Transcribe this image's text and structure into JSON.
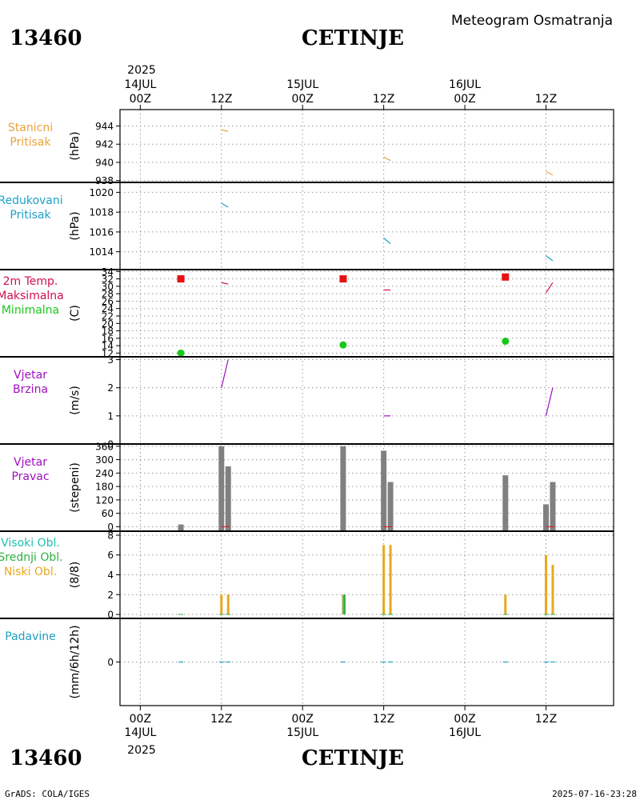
{
  "header": {
    "station_id": "13460",
    "station_name": "CETINJE",
    "subtitle": "Meteogram Osmatranja"
  },
  "footer": {
    "station_id": "13460",
    "station_name": "CETINJE",
    "credit": "GrADS: COLA/IGES",
    "timestamp": "2025-07-16-23:28"
  },
  "time_axis": {
    "year": "2025",
    "ticks": [
      {
        "hour": 0,
        "label": "00Z",
        "date": "14JUL"
      },
      {
        "hour": 12,
        "label": "12Z",
        "date": ""
      },
      {
        "hour": 24,
        "label": "00Z",
        "date": "15JUL"
      },
      {
        "hour": 36,
        "label": "12Z",
        "date": ""
      },
      {
        "hour": 48,
        "label": "00Z",
        "date": "16JUL"
      },
      {
        "hour": 60,
        "label": "12Z",
        "date": ""
      }
    ],
    "range": [
      -3,
      70
    ]
  },
  "colors": {
    "station_pressure": "#e8a23c",
    "reduced_pressure": "#1ea0c8",
    "temp_label": "#d0104a",
    "tmax": "#e81010",
    "tmin": "#18c818",
    "wind": "#a010c0",
    "wind_dir": "#808080",
    "high_cloud": "#20c0b0",
    "mid_cloud": "#30b040",
    "low_cloud": "#e8a820",
    "precip": "#20a0c0"
  },
  "chart_data": [
    {
      "type": "line",
      "id": "station_pressure",
      "labels": [
        "Stanicni",
        "Pritisak"
      ],
      "ylabel": "(hPa)",
      "yticks": [
        938,
        940,
        942,
        944
      ],
      "ylim": [
        937.8,
        945.8
      ],
      "series": [
        {
          "name": "Stanicni Pritisak",
          "segments": [
            [
              [
                12,
                943.6
              ],
              [
                13,
                943.4
              ]
            ],
            [
              [
                36,
                940.6
              ],
              [
                37,
                940.2
              ]
            ],
            [
              [
                60,
                939.0
              ],
              [
                61,
                938.6
              ]
            ]
          ]
        }
      ]
    },
    {
      "type": "line",
      "id": "reduced_pressure",
      "labels": [
        "Redukovani",
        "Pritisak"
      ],
      "ylabel": "(hPa)",
      "yticks": [
        1014,
        1016,
        1018,
        1020
      ],
      "ylim": [
        1012.2,
        1021.0
      ],
      "series": [
        {
          "name": "Redukovani Pritisak",
          "segments": [
            [
              [
                12,
                1018.9
              ],
              [
                13,
                1018.5
              ]
            ],
            [
              [
                36,
                1015.4
              ],
              [
                37,
                1014.8
              ]
            ],
            [
              [
                60,
                1013.6
              ],
              [
                61,
                1013.1
              ]
            ]
          ]
        }
      ]
    },
    {
      "type": "scatter",
      "id": "temperature",
      "labels": [
        "2m Temp.",
        "Maksimalna",
        "Minimalna"
      ],
      "ylabel": "(C)",
      "yticks": [
        12,
        14,
        16,
        18,
        20,
        22,
        24,
        26,
        28,
        30,
        32,
        34
      ],
      "ylim": [
        11,
        34.5
      ],
      "tmax": [
        {
          "x": 6,
          "y": 32.0
        },
        {
          "x": 30,
          "y": 32.0
        },
        {
          "x": 54,
          "y": 32.5
        }
      ],
      "tmin": [
        {
          "x": 6,
          "y": 12.0
        },
        {
          "x": 30,
          "y": 14.2
        },
        {
          "x": 54,
          "y": 15.2
        }
      ],
      "temp_segments": [
        [
          [
            12,
            31.0
          ],
          [
            13,
            30.6
          ]
        ],
        [
          [
            36,
            29.0
          ],
          [
            37,
            29.0
          ]
        ],
        [
          [
            60,
            28.2
          ],
          [
            61,
            31.0
          ]
        ]
      ]
    },
    {
      "type": "line",
      "id": "wind_speed",
      "labels": [
        "Vjetar",
        "Brzina"
      ],
      "ylabel": "(m/s)",
      "yticks": [
        0,
        1,
        2,
        3
      ],
      "ylim": [
        0,
        3.1
      ],
      "segments": [
        [
          [
            12,
            2.0
          ],
          [
            13,
            3.0
          ]
        ],
        [
          [
            36,
            1.0
          ],
          [
            37,
            1.0
          ]
        ],
        [
          [
            60,
            1.0
          ],
          [
            61,
            2.0
          ]
        ]
      ]
    },
    {
      "type": "bar",
      "id": "wind_direction",
      "labels": [
        "Vjetar",
        "Pravac"
      ],
      "ylabel": "(stepeni)",
      "yticks": [
        0,
        60,
        120,
        180,
        240,
        300,
        360
      ],
      "ylim": [
        -20,
        370
      ],
      "bars": [
        {
          "x": 6,
          "value": 10
        },
        {
          "x": 12,
          "value": 360
        },
        {
          "x": 13,
          "value": 270
        },
        {
          "x": 30,
          "value": 360
        },
        {
          "x": 36,
          "value": 340
        },
        {
          "x": 37,
          "value": 200
        },
        {
          "x": 54,
          "value": 230
        },
        {
          "x": 60,
          "value": 100
        },
        {
          "x": 61,
          "value": 200
        }
      ]
    },
    {
      "type": "bar",
      "id": "cloud_cover",
      "labels": [
        "Visoki Obl.",
        "Srednji Obl.",
        "Niski Obl."
      ],
      "ylabel": "(8/8)",
      "yticks": [
        0,
        2,
        4,
        6,
        8
      ],
      "ylim": [
        -0.4,
        8.4
      ],
      "series": [
        {
          "name": "Visoki Obl.",
          "values": [
            {
              "x": 30,
              "value": 2
            }
          ]
        },
        {
          "name": "Srednji Obl.",
          "values": [
            {
              "x": 30,
              "value": 2
            }
          ]
        },
        {
          "name": "Niski Obl.",
          "values": [
            {
              "x": 12,
              "value": 2
            },
            {
              "x": 13,
              "value": 2
            },
            {
              "x": 30,
              "value": 2
            },
            {
              "x": 36,
              "value": 7
            },
            {
              "x": 37,
              "value": 7
            },
            {
              "x": 54,
              "value": 2
            },
            {
              "x": 60,
              "value": 6
            },
            {
              "x": 61,
              "value": 5
            }
          ]
        }
      ]
    },
    {
      "type": "bar",
      "id": "precipitation",
      "labels": [
        "Padavine"
      ],
      "ylabel": "(mm/6h/12h)",
      "yticks": [
        0
      ],
      "ylim": [
        -5,
        5
      ],
      "values": [
        {
          "x": 6,
          "value": 0
        },
        {
          "x": 12,
          "value": 0
        },
        {
          "x": 13,
          "value": 0
        },
        {
          "x": 30,
          "value": 0
        },
        {
          "x": 36,
          "value": 0
        },
        {
          "x": 37,
          "value": 0
        },
        {
          "x": 54,
          "value": 0
        },
        {
          "x": 60,
          "value": 0
        },
        {
          "x": 61,
          "value": 0
        }
      ]
    }
  ]
}
